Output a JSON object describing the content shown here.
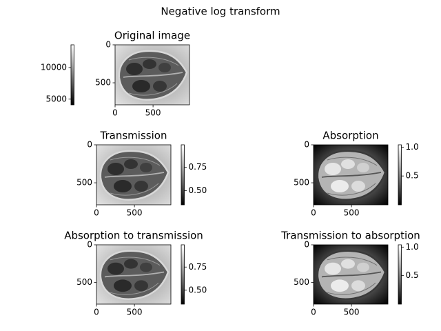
{
  "title": "Negative log transform",
  "chart_data": [
    {
      "type": "image",
      "title": "Original image",
      "xlim": [
        0,
        980
      ],
      "ylim": [
        790,
        0
      ],
      "xticks": [
        0,
        500
      ],
      "yticks": [
        0,
        500
      ],
      "colorbar": {
        "clim": [
          4100,
          13600
        ],
        "ticks": [
          5000,
          10000
        ],
        "side": "left"
      }
    },
    {
      "type": "image",
      "title": "Transmission",
      "xlim": [
        0,
        980
      ],
      "ylim": [
        790,
        0
      ],
      "xticks": [
        0,
        500
      ],
      "yticks": [
        0,
        500
      ],
      "colorbar": {
        "clim": [
          0.35,
          0.99
        ],
        "ticks": [
          {
            "value": 0.5,
            "label": "0.50"
          },
          0.75
        ],
        "side": "right"
      }
    },
    {
      "type": "image",
      "title": "Absorption",
      "xlim": [
        0,
        980
      ],
      "ylim": [
        790,
        0
      ],
      "xticks": [
        0,
        500
      ],
      "yticks": [
        0,
        500
      ],
      "colorbar": {
        "clim": [
          0,
          1.04
        ],
        "ticks": [
          0.5,
          {
            "value": 1,
            "label": "1.0"
          }
        ],
        "side": "right"
      }
    },
    {
      "type": "image",
      "title": "Absorption to transmission",
      "xlim": [
        0,
        980
      ],
      "ylim": [
        790,
        0
      ],
      "xticks": [
        0,
        500
      ],
      "yticks": [
        0,
        500
      ],
      "colorbar": {
        "clim": [
          0.35,
          0.99
        ],
        "ticks": [
          {
            "value": 0.5,
            "label": "0.50"
          },
          0.75
        ],
        "side": "right"
      }
    },
    {
      "type": "image",
      "title": "Transmission to absorption",
      "xlim": [
        0,
        980
      ],
      "ylim": [
        790,
        0
      ],
      "xticks": [
        0,
        500
      ],
      "yticks": [
        0,
        500
      ],
      "colorbar": {
        "clim": [
          0,
          1.04
        ],
        "ticks": [
          0.5,
          {
            "value": 1,
            "label": "1.0"
          }
        ],
        "side": "right"
      }
    }
  ]
}
